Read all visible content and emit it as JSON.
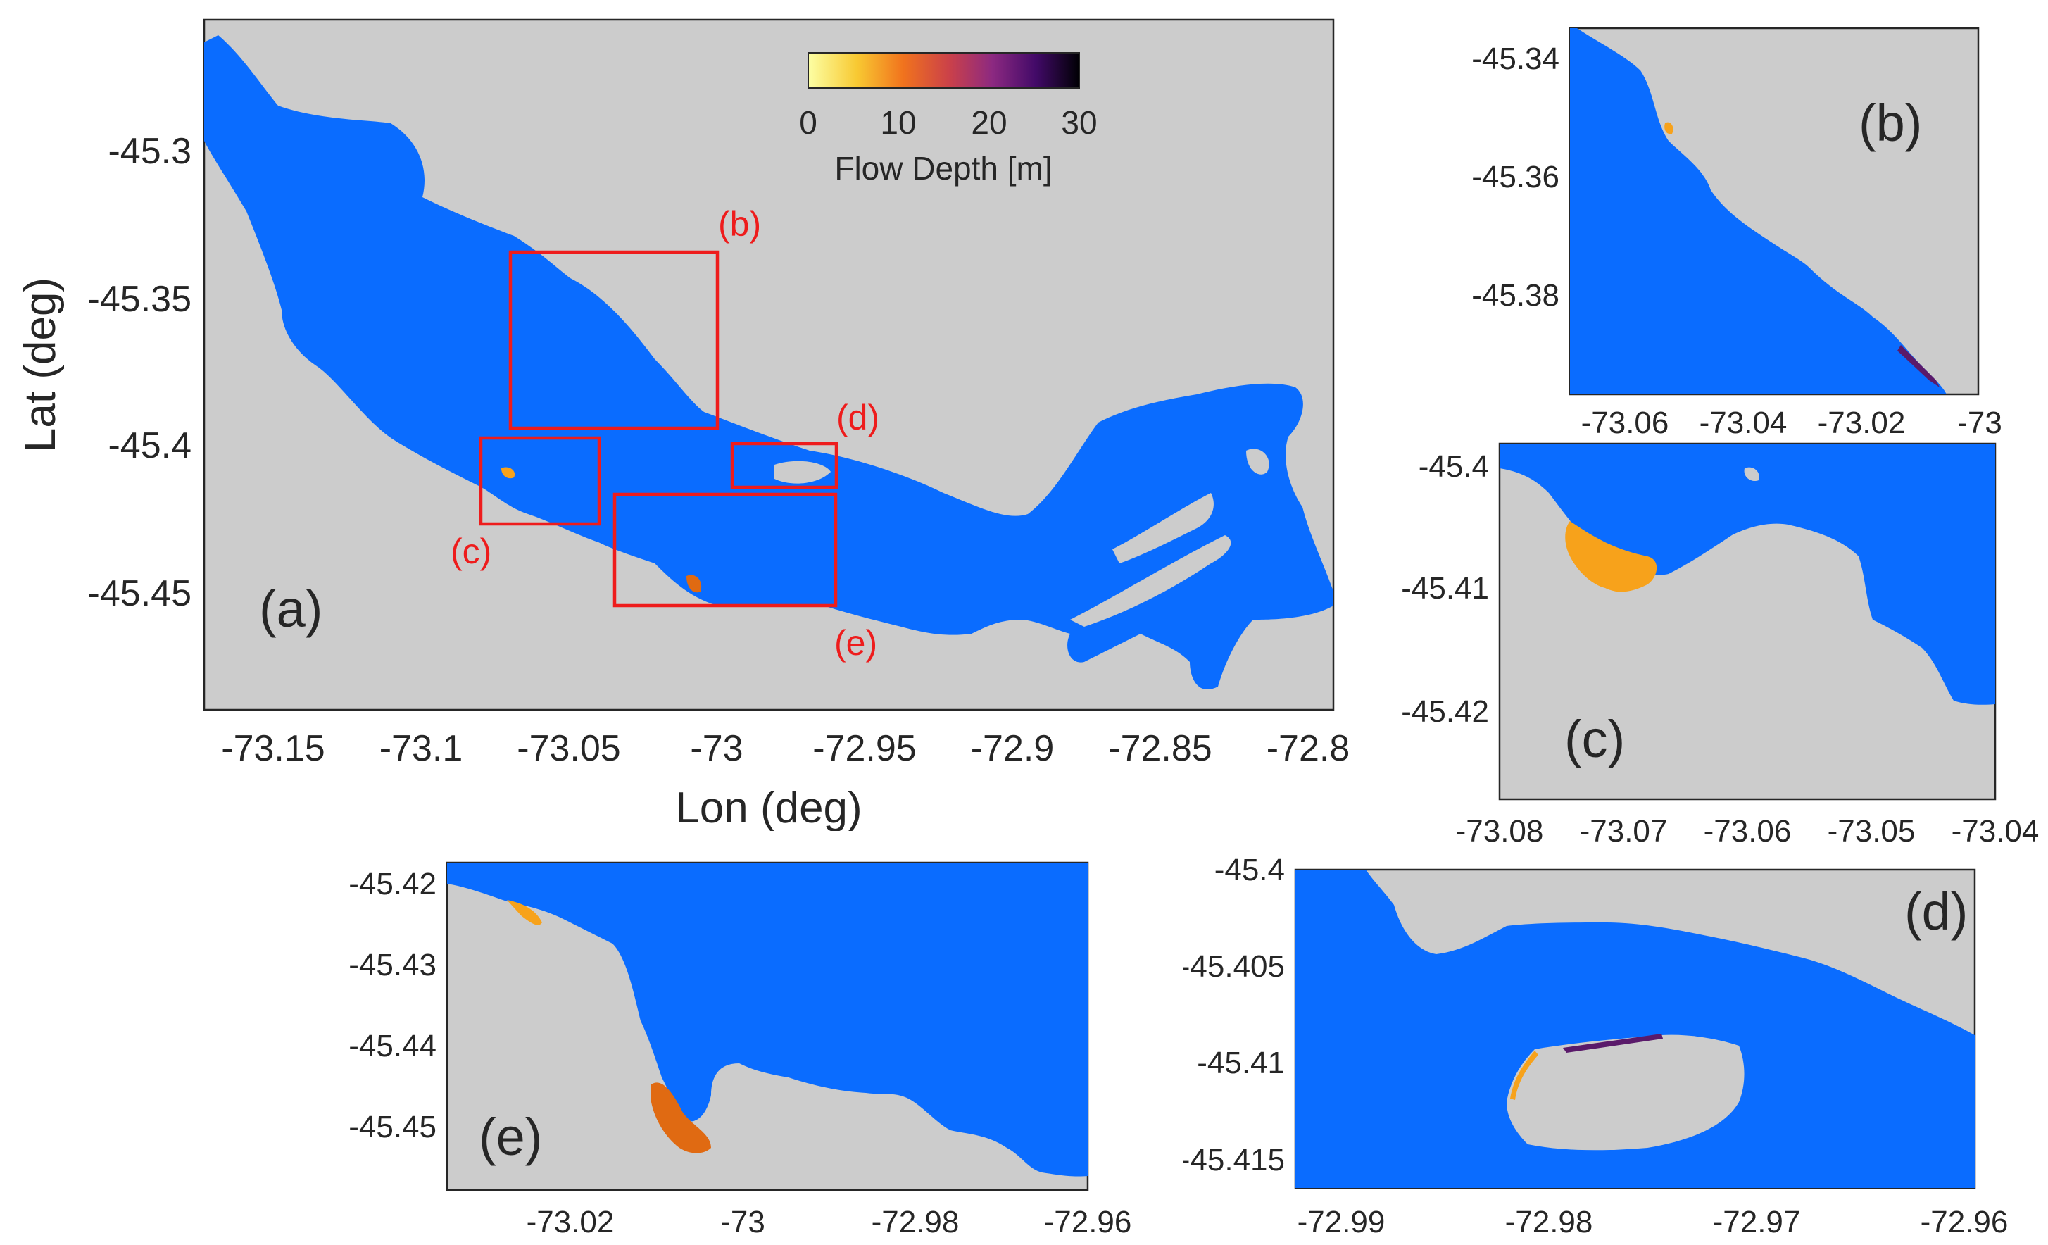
{
  "colorbar": {
    "ticks": [
      "0",
      "10",
      "20",
      "30"
    ],
    "label": "Flow Depth [m]",
    "colors": [
      "#fcffa4",
      "#f8c932",
      "#f1731d",
      "#cb4149",
      "#8c2981",
      "#420a68",
      "#000004"
    ]
  },
  "main": {
    "panel_label": "(a)",
    "xlabel": "Lon (deg)",
    "ylabel": "Lat (deg)",
    "xticks": [
      "-73.15",
      "-73.1",
      "-73.05",
      "-73",
      "-72.95",
      "-72.9",
      "-72.85",
      "-72.8"
    ],
    "yticks": [
      "-45.3",
      "-45.35",
      "-45.4",
      "-45.45"
    ],
    "box_labels": [
      "(b)",
      "(c)",
      "(d)",
      "(e)"
    ]
  },
  "panel_b": {
    "panel_label": "(b)",
    "xticks": [
      "-73.06",
      "-73.04",
      "-73.02",
      "-73"
    ],
    "yticks": [
      "-45.34",
      "-45.36",
      "-45.38"
    ]
  },
  "panel_c": {
    "panel_label": "(c)",
    "xticks": [
      "-73.08",
      "-73.07",
      "-73.06",
      "-73.05",
      "-73.04"
    ],
    "yticks": [
      "-45.4",
      "-45.41",
      "-45.42"
    ]
  },
  "panel_d": {
    "panel_label": "(d)",
    "xticks": [
      "-72.99",
      "-72.98",
      "-72.97",
      "-72.96"
    ],
    "yticks": [
      "-45.4",
      "-45.405",
      "-45.41",
      "-45.415"
    ]
  },
  "panel_e": {
    "panel_label": "(e)",
    "xticks": [
      "-73.02",
      "-73",
      "-72.98",
      "-72.96"
    ],
    "yticks": [
      "-45.42",
      "-45.43",
      "-45.44",
      "-45.45"
    ]
  },
  "colors": {
    "water": "#0a6cff",
    "land": "#cccccc",
    "box": "#ee1c1c"
  }
}
